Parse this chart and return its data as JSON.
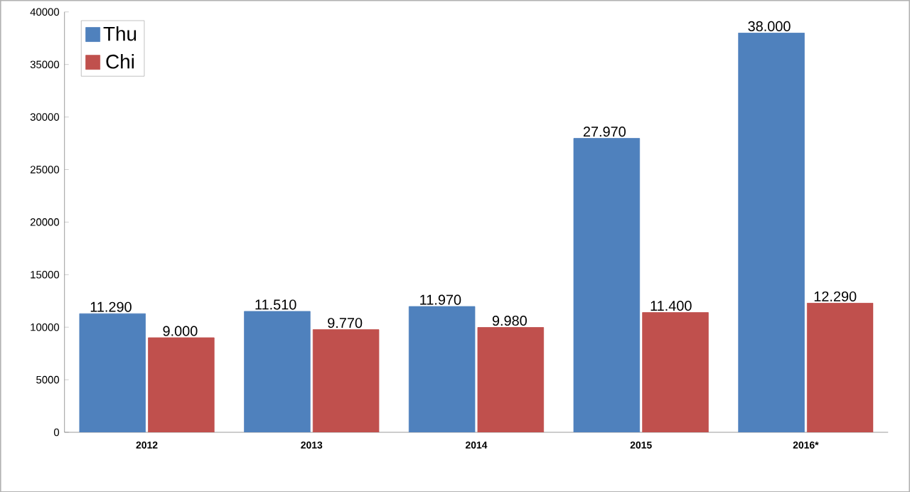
{
  "chart_data": {
    "type": "bar",
    "categories": [
      "2012",
      "2013",
      "2014",
      "2015",
      "2016*"
    ],
    "series": [
      {
        "name": "Thu",
        "color": "#4f81bd",
        "values": [
          11290,
          11510,
          11970,
          27970,
          38000
        ],
        "value_labels": [
          "11.290",
          "11.510",
          "11.970",
          "27.970",
          "38.000"
        ]
      },
      {
        "name": "Chi",
        "color": "#c0504d",
        "values": [
          9000,
          9770,
          9980,
          11400,
          12290
        ],
        "value_labels": [
          "9.000",
          "9.770",
          "9.980",
          "11.400",
          "12.290"
        ]
      }
    ],
    "ylim": [
      0,
      40000
    ],
    "yticks": [
      0,
      5000,
      10000,
      15000,
      20000,
      25000,
      30000,
      35000,
      40000
    ],
    "grid": false,
    "legend": "top left"
  }
}
